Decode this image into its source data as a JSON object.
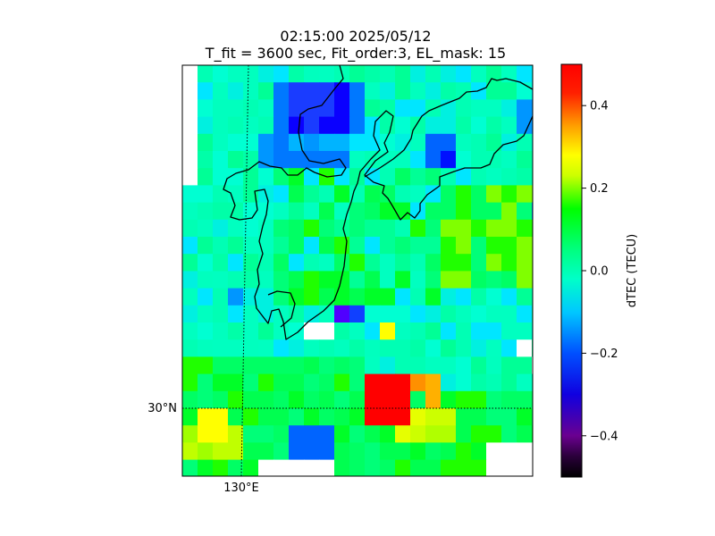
{
  "header": {
    "line1": "02:15:00 2025/05/12",
    "line2": "T_fit = 3600 sec, Fit_order:3, EL_mask: 15"
  },
  "map": {
    "lat_label": "30°N",
    "lon_label": "130°E",
    "coastline_color": "#000000",
    "gridline_style": "dotted"
  },
  "colorbar": {
    "label": "dTEC (TECU)",
    "ticks": [
      "0.4",
      "0.2",
      "0.0",
      "−0.2",
      "−0.4"
    ],
    "tick_values": [
      0.4,
      0.2,
      0.0,
      -0.2,
      -0.4
    ],
    "range": [
      -0.5,
      0.5
    ],
    "colormap": "nipy_spectral-like: black→purple→blue→cyan→green→yellow→orange→red"
  },
  "chart_data": {
    "type": "heatmap",
    "title": "02:15:00 2025/05/12 / T_fit = 3600 sec, Fit_order:3, EL_mask: 15",
    "colorbar_label": "dTEC (TECU)",
    "vmin": -0.5,
    "vmax": 0.5,
    "notable_values": {
      "strong_positive_block_near_30N_131E": 0.5,
      "negative_blocks_north": -0.25,
      "negative_block_south_west": -0.2,
      "background": 0.0
    }
  }
}
